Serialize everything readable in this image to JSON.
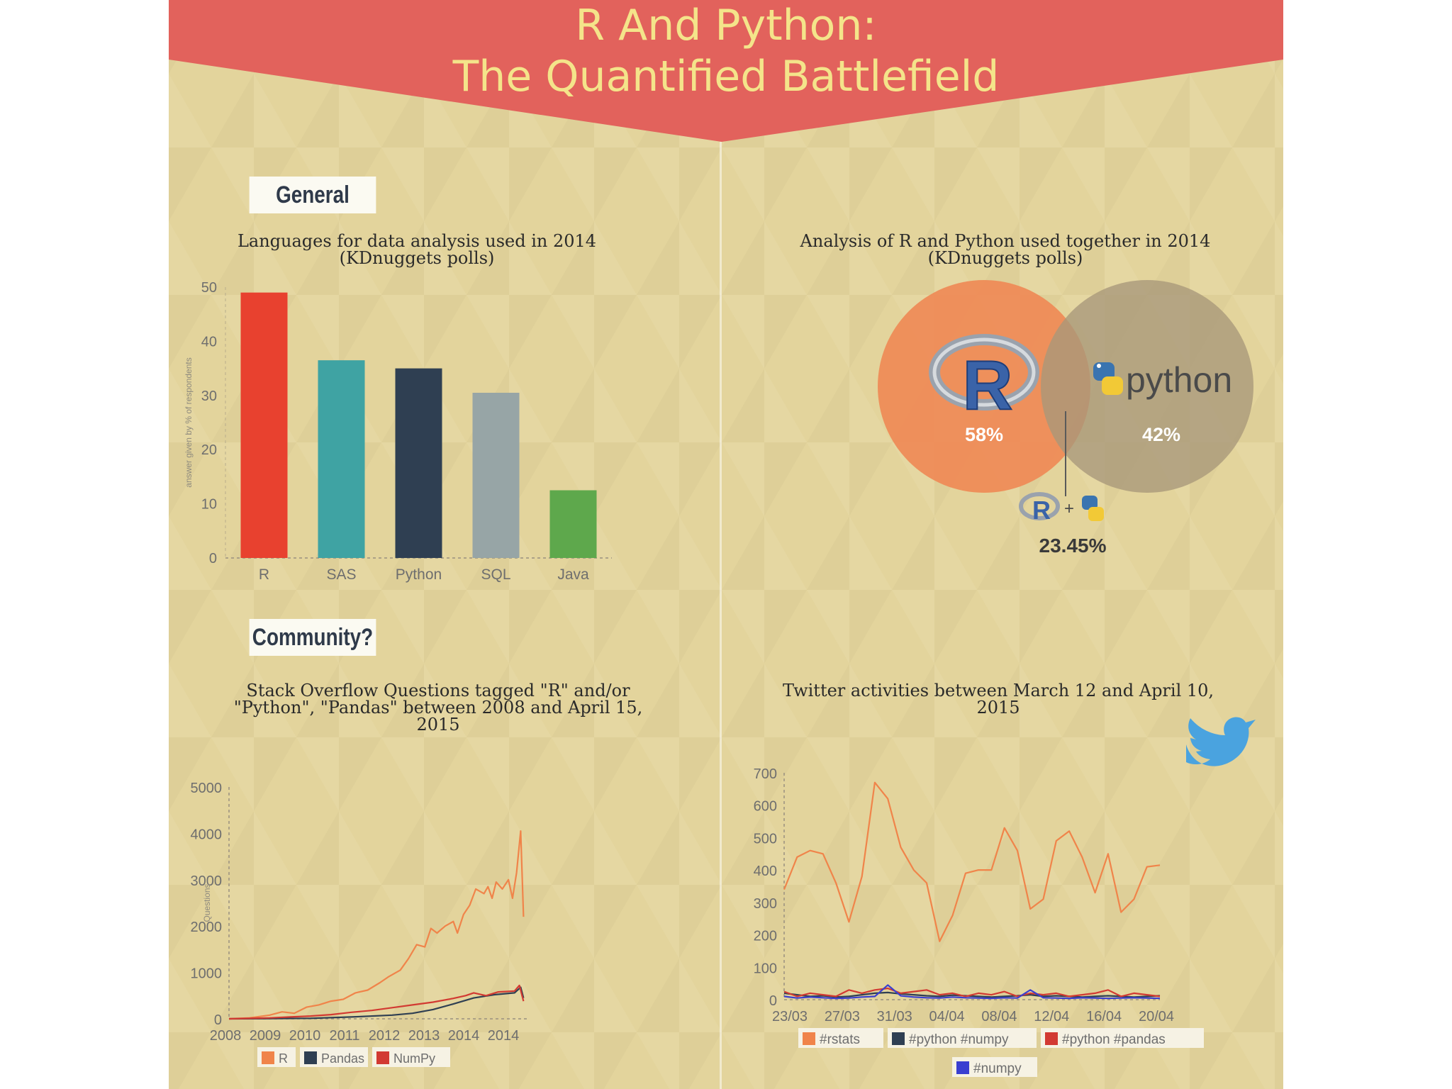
{
  "poster": {
    "title_line1": "R And Python:",
    "title_line2": "The Quantified Battlefield",
    "banner_color": "#e2625c",
    "background_color": "#e3d49c"
  },
  "sections": {
    "general_label": "General",
    "community_label": "Community?"
  },
  "titles": {
    "bar": "Languages for data analysis used in 2014 (KDnuggets polls)",
    "venn": "Analysis of R and Python used together in 2014 (KDnuggets polls)",
    "stack": "Stack Overflow Questions tagged \"R\" and/or \"Python\", \"Pandas\" between 2008 and April 15, 2015",
    "twitter": "Twitter activities between March 12 and April 10, 2015"
  },
  "chart_data": [
    {
      "id": "languages-bar",
      "type": "bar",
      "title": "Languages for data analysis used in 2014 (KDnuggets polls)",
      "ylabel": "answer given by % of respondents",
      "xlabel": "",
      "categories": [
        "R",
        "SAS",
        "Python",
        "SQL",
        "Java"
      ],
      "values": [
        49,
        36.5,
        35,
        30.5,
        12.5
      ],
      "colors": [
        "#e8412f",
        "#3fa3a3",
        "#2f3f52",
        "#97a5a6",
        "#5ea84c"
      ],
      "ylim": [
        0,
        50
      ],
      "yticks": [
        0,
        10,
        20,
        30,
        40,
        50
      ],
      "grid": false
    },
    {
      "id": "r-python-venn",
      "type": "venn",
      "title": "Analysis of R and Python used together in 2014 (KDnuggets polls)",
      "sets": [
        {
          "name": "R",
          "label": "58%",
          "value": 58,
          "color": "#ef8a56"
        },
        {
          "name": "python",
          "label": "42%",
          "value": 42,
          "color": "#a8977a"
        }
      ],
      "python_wordmark": "python",
      "overlap_label": "23.45%",
      "overlap_value": 23.45,
      "plus": "+"
    },
    {
      "id": "stackoverflow-line",
      "type": "line",
      "title": "Stack Overflow Questions tagged \"R\" and/or \"Python\", \"Pandas\" between 2008 and April 15, 2015",
      "ylabel": "Questions",
      "xlabel": "",
      "xlim": [
        2008,
        2015.3
      ],
      "ylim": [
        0,
        5000
      ],
      "yticks": [
        0,
        1000,
        2000,
        3000,
        4000,
        5000
      ],
      "xtick_labels": [
        "2008",
        "2009",
        "2010",
        "2011",
        "2012",
        "2013",
        "2014",
        "2014"
      ],
      "legend": "bottom",
      "series": [
        {
          "name": "R",
          "color": "#f0844a",
          "points": [
            [
              2008,
              0
            ],
            [
              2008.5,
              20
            ],
            [
              2009,
              80
            ],
            [
              2009.3,
              150
            ],
            [
              2009.6,
              120
            ],
            [
              2009.9,
              250
            ],
            [
              2010.2,
              300
            ],
            [
              2010.5,
              380
            ],
            [
              2010.8,
              420
            ],
            [
              2011.1,
              560
            ],
            [
              2011.4,
              620
            ],
            [
              2011.7,
              780
            ],
            [
              2011.9,
              900
            ],
            [
              2012.2,
              1050
            ],
            [
              2012.4,
              1300
            ],
            [
              2012.6,
              1600
            ],
            [
              2012.8,
              1550
            ],
            [
              2012.95,
              1950
            ],
            [
              2013.1,
              1850
            ],
            [
              2013.3,
              2000
            ],
            [
              2013.5,
              2100
            ],
            [
              2013.6,
              1850
            ],
            [
              2013.75,
              2250
            ],
            [
              2013.9,
              2450
            ],
            [
              2014.05,
              2800
            ],
            [
              2014.25,
              2700
            ],
            [
              2014.35,
              2850
            ],
            [
              2014.45,
              2600
            ],
            [
              2014.55,
              2950
            ],
            [
              2014.7,
              2800
            ],
            [
              2014.85,
              3000
            ],
            [
              2014.95,
              2600
            ],
            [
              2015.05,
              3150
            ],
            [
              2015.15,
              4050
            ],
            [
              2015.22,
              2200
            ]
          ]
        },
        {
          "name": "Pandas",
          "color": "#2f3f52",
          "points": [
            [
              2008,
              0
            ],
            [
              2010,
              10
            ],
            [
              2011,
              40
            ],
            [
              2012,
              80
            ],
            [
              2012.5,
              120
            ],
            [
              2013,
              200
            ],
            [
              2013.5,
              320
            ],
            [
              2014,
              450
            ],
            [
              2014.5,
              520
            ],
            [
              2015,
              560
            ],
            [
              2015.15,
              680
            ],
            [
              2015.22,
              450
            ]
          ]
        },
        {
          "name": "NumPy",
          "color": "#d23a32",
          "points": [
            [
              2008,
              0
            ],
            [
              2009,
              20
            ],
            [
              2009.5,
              40
            ],
            [
              2010,
              60
            ],
            [
              2010.5,
              90
            ],
            [
              2011,
              140
            ],
            [
              2011.5,
              180
            ],
            [
              2012,
              240
            ],
            [
              2012.5,
              300
            ],
            [
              2013,
              360
            ],
            [
              2013.5,
              440
            ],
            [
              2013.8,
              500
            ],
            [
              2014,
              560
            ],
            [
              2014.3,
              500
            ],
            [
              2014.6,
              580
            ],
            [
              2015,
              600
            ],
            [
              2015.12,
              720
            ],
            [
              2015.22,
              380
            ]
          ]
        }
      ]
    },
    {
      "id": "twitter-line",
      "type": "line",
      "title": "Twitter activities between March 12 and April 10, 2015",
      "xlabel": "",
      "ylabel": "",
      "xlim": [
        0,
        29
      ],
      "ylim": [
        0,
        700
      ],
      "yticks": [
        0,
        100,
        200,
        300,
        400,
        500,
        600,
        700
      ],
      "xtick_labels": [
        "23/03",
        "27/03",
        "31/03",
        "04/04",
        "08/04",
        "12/04",
        "16/04",
        "20/04"
      ],
      "legend": "bottom",
      "series": [
        {
          "name": "#rstats",
          "color": "#f0844a",
          "values": [
            340,
            440,
            460,
            450,
            360,
            240,
            380,
            670,
            620,
            470,
            400,
            360,
            180,
            260,
            390,
            400,
            400,
            530,
            460,
            280,
            310,
            490,
            520,
            440,
            330,
            450,
            270,
            310,
            410,
            415
          ]
        },
        {
          "name": "#python #numpy",
          "color": "#2f3f52",
          "values": [
            20,
            15,
            10,
            12,
            8,
            10,
            15,
            20,
            22,
            18,
            15,
            12,
            10,
            14,
            12,
            10,
            8,
            10,
            12,
            15,
            10,
            12,
            10,
            8,
            10,
            12,
            10,
            8,
            10,
            12
          ]
        },
        {
          "name": "#python #pandas",
          "color": "#d23a32",
          "values": [
            25,
            10,
            20,
            15,
            10,
            30,
            20,
            30,
            35,
            20,
            25,
            30,
            15,
            20,
            10,
            20,
            15,
            25,
            10,
            20,
            15,
            20,
            10,
            15,
            20,
            30,
            10,
            20,
            15,
            10
          ]
        },
        {
          "name": "#numpy",
          "color": "#3a3fd0",
          "values": [
            10,
            5,
            8,
            6,
            4,
            5,
            8,
            10,
            45,
            12,
            8,
            6,
            5,
            8,
            6,
            5,
            4,
            6,
            5,
            30,
            6,
            5,
            4,
            6,
            5,
            4,
            5,
            6,
            5,
            4
          ]
        }
      ]
    }
  ]
}
